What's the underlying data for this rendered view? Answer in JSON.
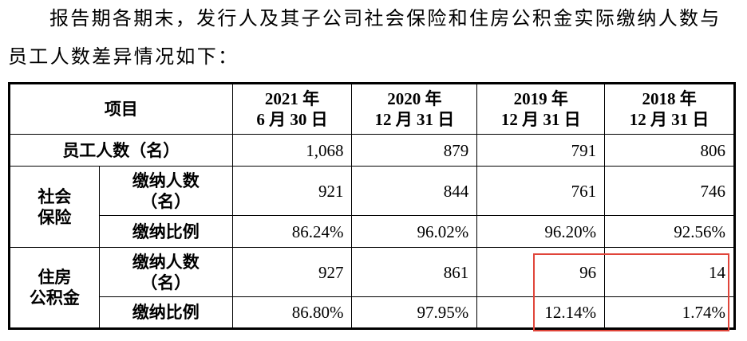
{
  "intro": "报告期各期末，发行人及其子公司社会保险和住房公积金实际缴纳人数与员工人数差异情况如下：",
  "table": {
    "header": {
      "item": "项目",
      "periods": [
        [
          "2021 年",
          "6 月 30 日"
        ],
        [
          "2020 年",
          "12 月 31 日"
        ],
        [
          "2019 年",
          "12 月 31 日"
        ],
        [
          "2018 年",
          "12 月 31 日"
        ]
      ]
    },
    "rows": [
      {
        "label": "员工人数（名）",
        "values": [
          "1,068",
          "879",
          "791",
          "806"
        ]
      },
      {
        "group": [
          "社会",
          "保险"
        ],
        "items": [
          {
            "label": [
              "缴纳人数",
              "（名）"
            ],
            "values": [
              "921",
              "844",
              "761",
              "746"
            ]
          },
          {
            "label": [
              "缴纳比例"
            ],
            "values": [
              "86.24%",
              "96.02%",
              "96.20%",
              "92.56%"
            ]
          }
        ]
      },
      {
        "group": [
          "住房",
          "公积金"
        ],
        "items": [
          {
            "label": [
              "缴纳人数",
              "（名）"
            ],
            "values": [
              "927",
              "861",
              "96",
              "14"
            ]
          },
          {
            "label": [
              "缴纳比例"
            ],
            "values": [
              "86.80%",
              "97.95%",
              "12.14%",
              "1.74%"
            ]
          }
        ]
      }
    ]
  }
}
